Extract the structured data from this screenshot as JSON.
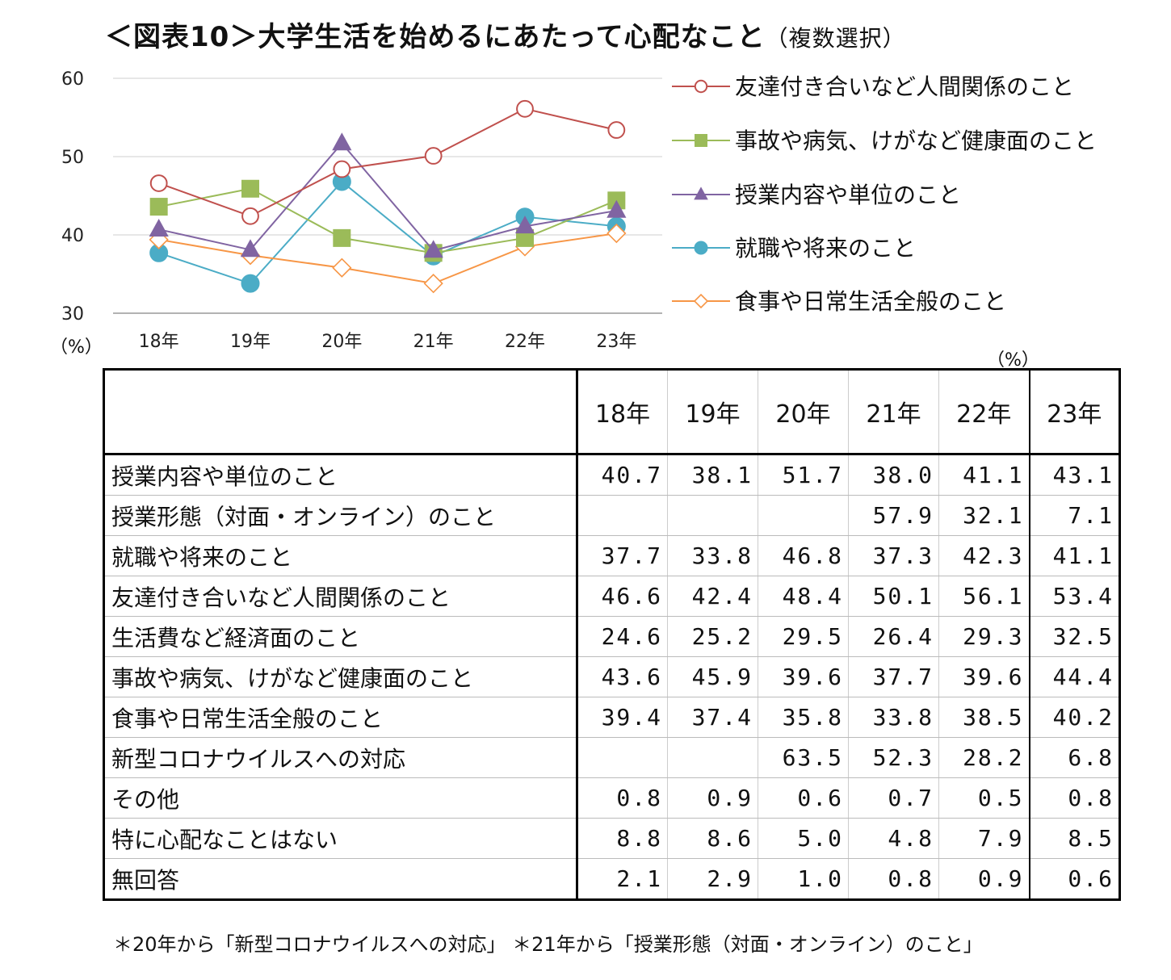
{
  "title": "＜図表10＞大学生活を始めるにあたって心配なこと",
  "title_sub": "（複数選択）",
  "chart_data": {
    "type": "line",
    "categories": [
      "18年",
      "19年",
      "20年",
      "21年",
      "22年",
      "23年"
    ],
    "ylim": [
      30,
      60
    ],
    "yticks": [
      30,
      40,
      50,
      60
    ],
    "ylabel": "（%）",
    "grid": true,
    "legend_position": "right",
    "series": [
      {
        "name": "友達付き合いなど人間関係のこと",
        "values": [
          46.6,
          42.4,
          48.4,
          50.1,
          56.1,
          53.4
        ],
        "color": "#c0504d",
        "marker": "circle-open"
      },
      {
        "name": "事故や病気、けがなど健康面のこと",
        "values": [
          43.6,
          45.9,
          39.6,
          37.7,
          39.6,
          44.4
        ],
        "color": "#9bbb59",
        "marker": "square"
      },
      {
        "name": "授業内容や単位のこと",
        "values": [
          40.7,
          38.1,
          51.7,
          38.0,
          41.1,
          43.1
        ],
        "color": "#8064a2",
        "marker": "triangle"
      },
      {
        "name": "就職や将来のこと",
        "values": [
          37.7,
          33.8,
          46.8,
          37.3,
          42.3,
          41.1
        ],
        "color": "#4bacc6",
        "marker": "circle"
      },
      {
        "name": "食事や日常生活全般のこと",
        "values": [
          39.4,
          37.4,
          35.8,
          33.8,
          38.5,
          40.2
        ],
        "color": "#f79646",
        "marker": "diamond-open"
      }
    ]
  },
  "table": {
    "unit": "（%）",
    "headers": [
      "",
      "18年",
      "19年",
      "20年",
      "21年",
      "22年",
      "23年"
    ],
    "rows": [
      {
        "label": "授業内容や単位のこと",
        "values": [
          "40.7",
          "38.1",
          "51.7",
          "38.0",
          "41.1",
          "43.1"
        ]
      },
      {
        "label": "授業形態（対面・オンライン）のこと",
        "values": [
          "",
          "",
          "",
          "57.9",
          "32.1",
          "7.1"
        ]
      },
      {
        "label": "就職や将来のこと",
        "values": [
          "37.7",
          "33.8",
          "46.8",
          "37.3",
          "42.3",
          "41.1"
        ]
      },
      {
        "label": "友達付き合いなど人間関係のこと",
        "values": [
          "46.6",
          "42.4",
          "48.4",
          "50.1",
          "56.1",
          "53.4"
        ]
      },
      {
        "label": "生活費など経済面のこと",
        "values": [
          "24.6",
          "25.2",
          "29.5",
          "26.4",
          "29.3",
          "32.5"
        ]
      },
      {
        "label": "事故や病気、けがなど健康面のこと",
        "values": [
          "43.6",
          "45.9",
          "39.6",
          "37.7",
          "39.6",
          "44.4"
        ]
      },
      {
        "label": "食事や日常生活全般のこと",
        "values": [
          "39.4",
          "37.4",
          "35.8",
          "33.8",
          "38.5",
          "40.2"
        ]
      },
      {
        "label": "新型コロナウイルスへの対応",
        "values": [
          "",
          "",
          "63.5",
          "52.3",
          "28.2",
          "6.8"
        ]
      },
      {
        "label": "その他",
        "values": [
          "0.8",
          "0.9",
          "0.6",
          "0.7",
          "0.5",
          "0.8"
        ]
      },
      {
        "label": "特に心配なことはない",
        "values": [
          "8.8",
          "8.6",
          "5.0",
          "4.8",
          "7.9",
          "8.5"
        ]
      },
      {
        "label": "無回答",
        "values": [
          "2.1",
          "2.9",
          "1.0",
          "0.8",
          "0.9",
          "0.6"
        ]
      }
    ]
  },
  "footnote": "＊20年から「新型コロナウイルスへの対応」 ＊21年から「授業形態（対面・オンライン）のこと」"
}
